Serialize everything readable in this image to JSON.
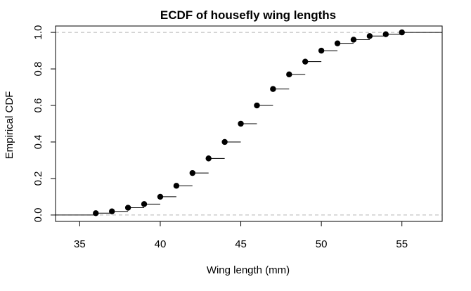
{
  "chart_data": {
    "type": "line",
    "subtype": "ecdf-step",
    "title": "ECDF of housefly wing lengths",
    "xlabel": "Wing length (mm)",
    "ylabel": "Empirical CDF",
    "xlim": [
      33.5,
      57.5
    ],
    "ylim": [
      -0.035,
      1.035
    ],
    "xticks": [
      35,
      40,
      45,
      50,
      55
    ],
    "yticks": [
      0.0,
      0.2,
      0.4,
      0.6,
      0.8,
      1.0
    ],
    "xtick_labels": [
      "35",
      "40",
      "45",
      "50",
      "55"
    ],
    "ytick_labels": [
      "0.0",
      "0.2",
      "0.4",
      "0.6",
      "0.8",
      "1.0"
    ],
    "reference_lines_y": [
      0,
      1
    ],
    "x": [
      36,
      37,
      38,
      39,
      40,
      41,
      42,
      43,
      44,
      45,
      46,
      47,
      48,
      49,
      50,
      51,
      52,
      53,
      54,
      55
    ],
    "y": [
      0.01,
      0.02,
      0.04,
      0.06,
      0.1,
      0.16,
      0.23,
      0.31,
      0.4,
      0.5,
      0.6,
      0.69,
      0.77,
      0.84,
      0.9,
      0.94,
      0.96,
      0.98,
      0.99,
      1.0
    ],
    "colors": {
      "line": "#000000",
      "point": "#000000",
      "reference": "#b3b3b3"
    }
  }
}
